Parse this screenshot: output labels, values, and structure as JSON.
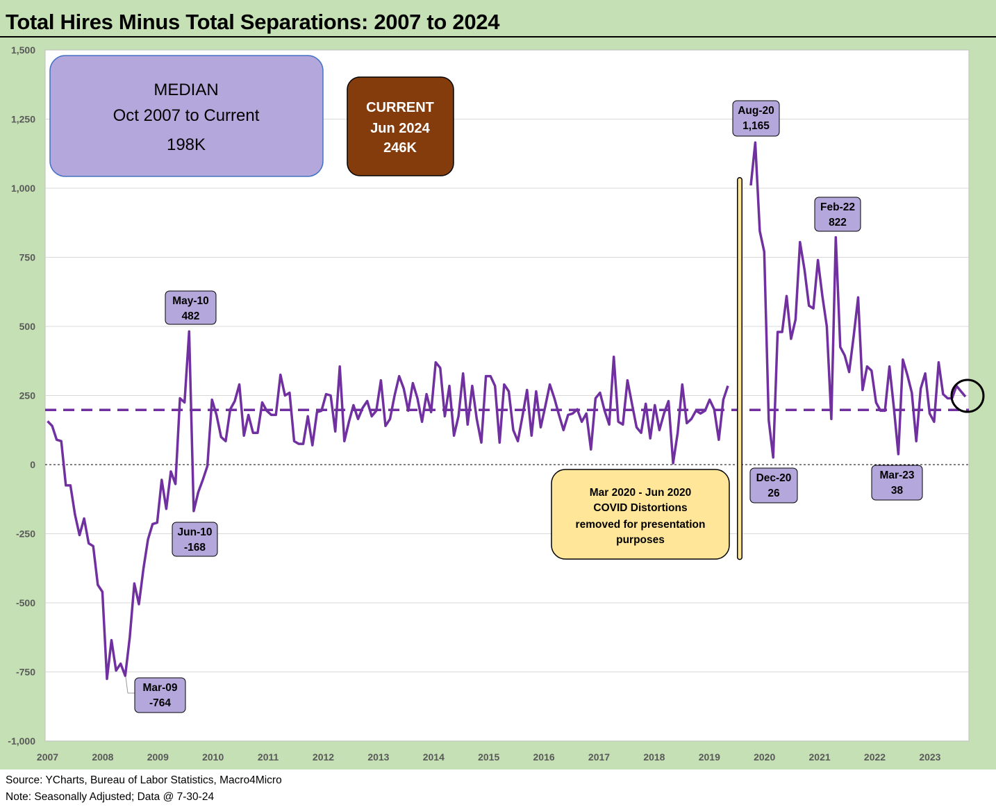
{
  "title": "Total Hires Minus Total Separations: 2007 to 2024",
  "footer": {
    "source": "Source: YCharts, Bureau of Labor Statistics, Macro4Micro",
    "note": "Note: Seasonally Adjusted; Data @ 7-30-24"
  },
  "median_box": {
    "line1": "MEDIAN",
    "line2": "Oct 2007 to Current",
    "line3": "198K"
  },
  "current_box": {
    "line1": "CURRENT",
    "line2": "Jun 2024",
    "line3": "246K"
  },
  "covid_note": [
    "Mar 2020 - Jun 2020",
    "COVID Distortions",
    "removed for presentation",
    "purposes"
  ],
  "callouts": [
    {
      "label": "Aug-20",
      "value": "1,165"
    },
    {
      "label": "Feb-22",
      "value": "822"
    },
    {
      "label": "May-10",
      "value": "482"
    },
    {
      "label": "Jun-10",
      "value": "-168"
    },
    {
      "label": "Mar-09",
      "value": "-764"
    },
    {
      "label": "Dec-20",
      "value": "26"
    },
    {
      "label": "Mar-23",
      "value": "38"
    }
  ],
  "colors": {
    "line": "#7030a0",
    "median_line": "#7030a0",
    "median_box": "#b4a7dc",
    "current_box": "#843c0c",
    "covid_box": "#ffe699",
    "background": "#c5e0b4",
    "plot": "#ffffff"
  },
  "chart_data": {
    "type": "line",
    "y_tick_labels": [
      "1,500",
      "1,250",
      "1,000",
      "750",
      "500",
      "250",
      "0",
      "-250",
      "-500",
      "-750",
      "-1,000"
    ],
    "ylim": [
      -1000,
      1500
    ],
    "x_tick_labels": [
      "2007",
      "2008",
      "2009",
      "2010",
      "2011",
      "2012",
      "2013",
      "2014",
      "2015",
      "2016",
      "2017",
      "2018",
      "2019",
      "2020",
      "2021",
      "2022",
      "2023"
    ],
    "grid": "horizontal",
    "median": 198,
    "zero_line": "dashed",
    "series": [
      {
        "segments": [
          [
            157,
            140,
            90,
            85,
            -75,
            -75,
            -180,
            -255,
            -195,
            -285,
            -295,
            -435,
            -460,
            -775,
            -635,
            -745,
            -720,
            -764,
            -625,
            -430,
            -505,
            -375,
            -270,
            -215,
            -210,
            -55,
            -160,
            -25,
            -70,
            240,
            225,
            482,
            -168,
            -100,
            -55,
            -5,
            235,
            180,
            100,
            85,
            200,
            230,
            290,
            105,
            180,
            115,
            115,
            225,
            195,
            180,
            180,
            325,
            250,
            260,
            85,
            75,
            75,
            175,
            70,
            190,
            195,
            255,
            250,
            120,
            355,
            85,
            155,
            215,
            165,
            205,
            230,
            175,
            195,
            305,
            140,
            165,
            250,
            320,
            275,
            195,
            295,
            240,
            155,
            255,
            190,
            370,
            350,
            175,
            285,
            105,
            175,
            330,
            145,
            285,
            165,
            80,
            320,
            320,
            285,
            80,
            290,
            265,
            125,
            85,
            175,
            270,
            105,
            265,
            135,
            210,
            290,
            240,
            180,
            125,
            180,
            185,
            200,
            155,
            185,
            55,
            240,
            260,
            195,
            145,
            390,
            155,
            145,
            305,
            220,
            135,
            115,
            220,
            95,
            215,
            125,
            185,
            230,
            5,
            115,
            290,
            150,
            165,
            195,
            185,
            195,
            235,
            200,
            90,
            235,
            285
          ],
          [
            1010,
            1165,
            845,
            770,
            160,
            26,
            480,
            480,
            610,
            455,
            525,
            805,
            705,
            575,
            565,
            740,
            610,
            500,
            165,
            822,
            425,
            395,
            335,
            465,
            605,
            270,
            355,
            340,
            225,
            195,
            195,
            355,
            205,
            38,
            380,
            325,
            260,
            85,
            275,
            330,
            185,
            155,
            370,
            255,
            240,
            240,
            285,
            265,
            246
          ]
        ]
      }
    ]
  }
}
